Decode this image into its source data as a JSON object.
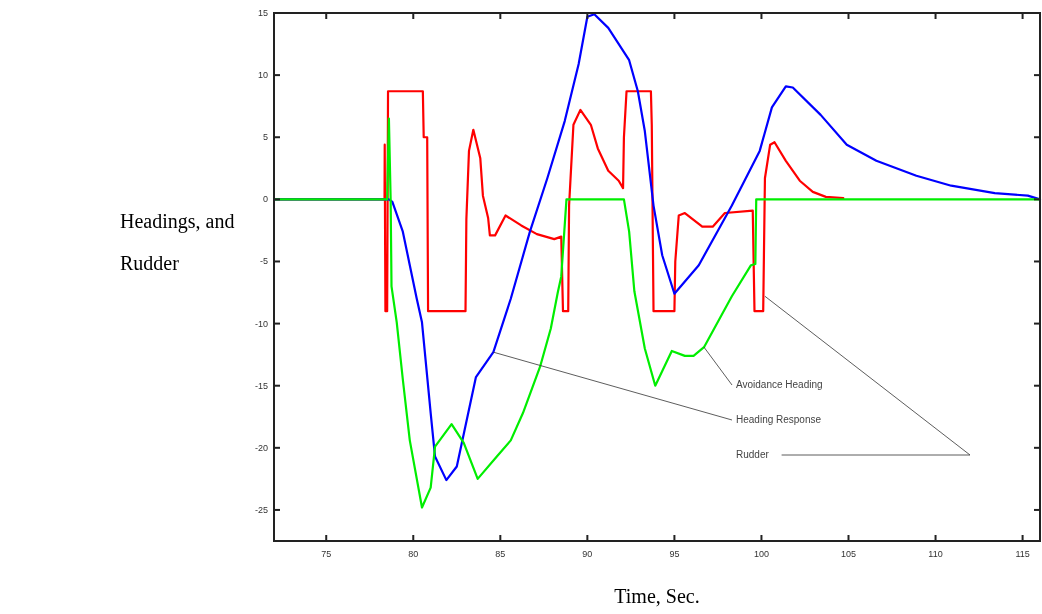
{
  "chart_data": {
    "type": "line",
    "xlabel": "Time, Sec.",
    "ylabel": "Headings, and Rudder",
    "xlim": [
      72,
      116
    ],
    "xticks": [
      75,
      80,
      85,
      90,
      95,
      100,
      105,
      110,
      115
    ],
    "ylim": [
      -27.5,
      15
    ],
    "yticks": [
      15,
      10,
      5,
      0,
      -5,
      -10,
      -15,
      -20,
      -25
    ],
    "grid": false,
    "marker": "none",
    "line_style": "solid",
    "series": [
      {
        "color": "#ff0000",
        "x": [
          72,
          78.35,
          78.36,
          78.4,
          78.5,
          78.55,
          80.55,
          80.6,
          80.8,
          80.85,
          83.0,
          83.05,
          83.2,
          83.45,
          83.85,
          84.0,
          84.3,
          84.4,
          84.7,
          85.3,
          86.2,
          87.1,
          88.1,
          88.5,
          88.6,
          88.9,
          88.95,
          89.2,
          89.6,
          90.2,
          90.6,
          91.2,
          91.8,
          92.05,
          92.1,
          92.25,
          93.65,
          93.7,
          93.8,
          95.0,
          95.05,
          95.25,
          95.6,
          96.6,
          97.2,
          97.9,
          99.5,
          99.6,
          100.1,
          100.2,
          100.5,
          100.75,
          101.4,
          102.2,
          102.95,
          103.7,
          104.7
        ],
        "values": [
          0,
          0,
          4.4,
          -9,
          -9,
          8.7,
          8.7,
          5,
          5,
          -9,
          -9,
          -1.6,
          3.9,
          5.6,
          3.3,
          0.3,
          -1.5,
          -2.9,
          -2.9,
          -1.3,
          -2.1,
          -2.8,
          -3.2,
          -3.0,
          -9,
          -9,
          -0.5,
          6,
          7.2,
          6.0,
          4.1,
          2.3,
          1.5,
          0.9,
          5,
          8.7,
          8.7,
          6,
          -9,
          -9,
          -5,
          -1.3,
          -1.1,
          -2.2,
          -2.2,
          -1.1,
          -0.9,
          -9,
          -9,
          1.7,
          4.4,
          4.6,
          3.1,
          1.5,
          0.6,
          0.2,
          0.1
        ]
      },
      {
        "color": "#0000ff",
        "x": [
          72,
          78.6,
          78.8,
          79.4,
          79.8,
          80.2,
          80.5,
          81.0,
          81.25,
          81.9,
          82.5,
          83.6,
          84.6,
          85.6,
          86.7,
          87.7,
          88.7,
          89.5,
          90.0,
          90.4,
          91.2,
          92.4,
          92.9,
          93.3,
          93.8,
          94.3,
          95.0,
          96.4,
          98.3,
          99.9,
          100.6,
          101.4,
          101.8,
          103.4,
          104.9,
          106.6,
          108.9,
          110.9,
          113.4,
          115.3,
          116
        ],
        "values": [
          0,
          0,
          -0.2,
          -2.6,
          -5.3,
          -8,
          -9.9,
          -17.2,
          -20.7,
          -22.6,
          -21.5,
          -14.3,
          -12.3,
          -8,
          -2.6,
          1.7,
          6.3,
          10.9,
          14.7,
          14.9,
          13.8,
          11.2,
          8.7,
          5.5,
          -0.5,
          -4.5,
          -7.6,
          -5.3,
          -0.5,
          3.9,
          7.4,
          9.1,
          9.0,
          6.8,
          4.4,
          3.1,
          1.9,
          1.1,
          0.5,
          0.3,
          0
        ]
      },
      {
        "color": "#00ee00",
        "x": [
          72,
          78.5,
          78.6,
          78.7,
          78.75,
          79.05,
          79.4,
          79.8,
          80.5,
          81.0,
          81.25,
          82.2,
          82.9,
          83.7,
          84.8,
          85.6,
          86.3,
          87.3,
          87.9,
          88.3,
          88.5,
          88.8,
          92.1,
          92.4,
          92.7,
          93.3,
          93.9,
          94.85,
          95.6,
          96.1,
          96.7,
          98.3,
          99.4,
          99.65,
          99.7,
          116
        ],
        "values": [
          0,
          0,
          6.5,
          0,
          -7,
          -9.9,
          -14.5,
          -19.4,
          -24.8,
          -23.2,
          -19.9,
          -18.1,
          -19.6,
          -22.5,
          -20.7,
          -19.4,
          -17.2,
          -13.4,
          -10.4,
          -7.5,
          -6.2,
          0,
          0,
          -2.6,
          -7.4,
          -12,
          -15,
          -12.2,
          -12.6,
          -12.6,
          -11.9,
          -7.8,
          -5.3,
          -5.2,
          0,
          0
        ]
      }
    ],
    "annotations": [
      {
        "text": "Avoidance Heading",
        "x": 96.7,
        "y": -11.9
      },
      {
        "text": "Heading Response",
        "x": 84.6,
        "y": -12.3
      },
      {
        "text": "Rudder",
        "x": 100.2,
        "y": -7.8
      }
    ]
  }
}
